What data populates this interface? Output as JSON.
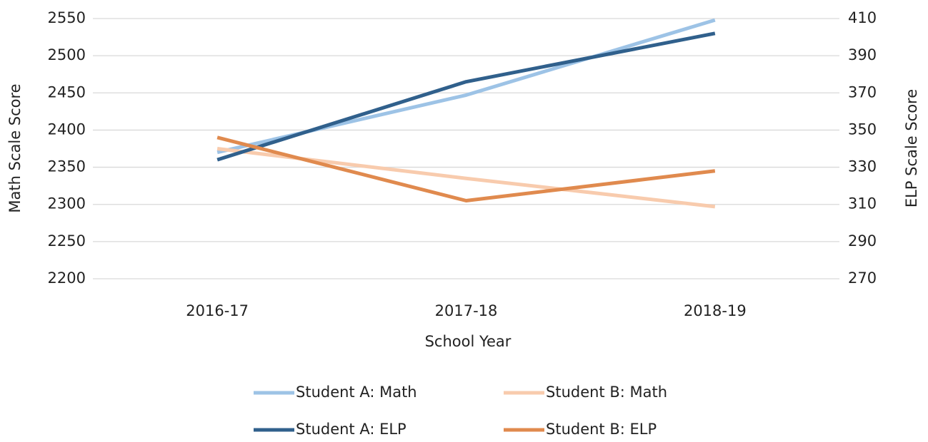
{
  "chart_data": {
    "type": "line",
    "categories": [
      "2016-17",
      "2017-18",
      "2018-19"
    ],
    "x_label": "School Year",
    "y_label": "Math Scale Score",
    "y2_label": "ELP Scale Score",
    "ylim": [
      2200,
      2550
    ],
    "yticks": [
      2200,
      2250,
      2300,
      2350,
      2400,
      2450,
      2500,
      2550
    ],
    "y2lim": [
      270,
      410
    ],
    "y2ticks": [
      270,
      290,
      310,
      330,
      350,
      370,
      390,
      410
    ],
    "grid": true,
    "series": [
      {
        "name": "Student A: Math",
        "color": "#9dc3e6",
        "values": [
          2370,
          2447,
          2548
        ]
      },
      {
        "name": "Student B: Math",
        "color": "#f8cbad",
        "values": [
          2375,
          2335,
          2297
        ]
      },
      {
        "name": "Student A: ELP",
        "color": "#30608c",
        "axis": "y2",
        "values": [
          334,
          376,
          402
        ]
      },
      {
        "name": "Student B: ELP",
        "color": "#e08a4e",
        "axis": "y2",
        "values": [
          346,
          312,
          328
        ]
      }
    ]
  }
}
